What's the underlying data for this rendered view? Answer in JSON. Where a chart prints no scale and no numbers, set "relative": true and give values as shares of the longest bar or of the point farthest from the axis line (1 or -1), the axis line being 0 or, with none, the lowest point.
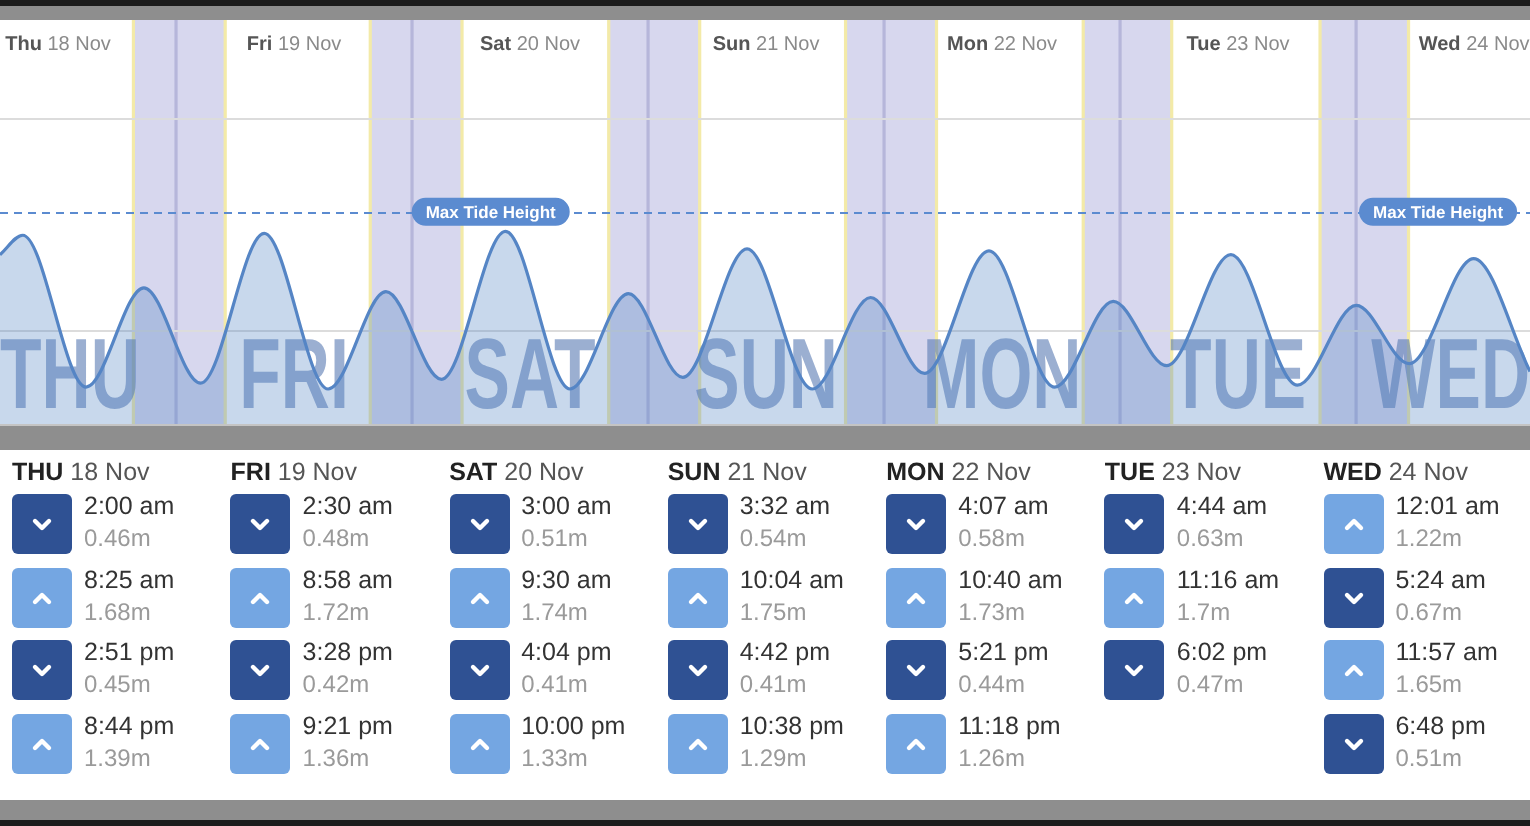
{
  "chart_data": [
    {
      "type": "area",
      "relative": true,
      "color": "#5585c5",
      "x": [
        "--11-18T06:06",
        "--11-18T08:25",
        "--11-18T14:51",
        "--11-18T20:44",
        "--11-19T02:30",
        "--11-19T08:58",
        "--11-19T15:28",
        "--11-19T21:21",
        "--11-20T03:00",
        "--11-20T09:30",
        "--11-20T16:04",
        "--11-20T22:00",
        "--11-21T03:32",
        "--11-21T10:04",
        "--11-21T16:42",
        "--11-21T22:38",
        "--11-22T04:07",
        "--11-22T10:40",
        "--11-22T17:21",
        "--11-22T23:18",
        "--11-23T04:44",
        "--11-23T11:16",
        "--11-23T18:02",
        "--11-24T00:01",
        "--11-24T05:24",
        "--11-24T11:57",
        "--11-24T17:41"
      ],
      "values": [
        0.88,
        0.98,
        0.2,
        0.71,
        0.22,
        0.99,
        0.19,
        0.69,
        0.24,
        1,
        0.19,
        0.68,
        0.25,
        0.91,
        0.19,
        0.66,
        0.27,
        0.9,
        0.2,
        0.64,
        0.31,
        0.88,
        0.21,
        0.62,
        0.32,
        0.86,
        0.28
      ],
      "xlim": [
        "--11-18T06:06",
        "--11-24T17:41"
      ],
      "xticks": [
        {
          "value": "--11-18T12:00",
          "label": "Thu 18 Nov"
        },
        {
          "value": "--11-19T12:00",
          "label": "Fri 19 Nov"
        },
        {
          "value": "--11-20T12:00",
          "label": "Sat 20 Nov"
        },
        {
          "value": "--11-21T12:00",
          "label": "Sun 21 Nov"
        },
        {
          "value": "--11-22T12:00",
          "label": "Mon 22 Nov"
        },
        {
          "value": "--11-23T12:00",
          "label": "Tue 23 Nov"
        },
        {
          "value": "--11-24T12:00",
          "label": "Wed 24 Nov"
        }
      ],
      "tick_labels": "x",
      "marker": "none",
      "ref_lines": [
        {
          "axis": "x",
          "value": "--11-19T00:00",
          "color": "#b6b6da"
        },
        {
          "axis": "x",
          "value": "--11-20T00:00",
          "color": "#b6b6da"
        },
        {
          "axis": "x",
          "value": "--11-21T00:00",
          "color": "#b6b6da"
        },
        {
          "axis": "x",
          "value": "--11-22T00:00",
          "color": "#b6b6da"
        },
        {
          "axis": "x",
          "value": "--11-23T00:00",
          "color": "#b6b6da"
        },
        {
          "axis": "x",
          "value": "--11-24T00:00",
          "color": "#b6b6da"
        },
        {
          "axis": "x",
          "value": "--11-18T19:40",
          "color": "#f3eaa8"
        },
        {
          "axis": "x",
          "value": "--11-19T05:00",
          "color": "#f3eaa8"
        },
        {
          "axis": "x",
          "value": "--11-19T19:45",
          "color": "#f3eaa8"
        },
        {
          "axis": "x",
          "value": "--11-20T05:05",
          "color": "#f3eaa8"
        },
        {
          "axis": "x",
          "value": "--11-20T20:00",
          "color": "#f3eaa8"
        },
        {
          "axis": "x",
          "value": "--11-21T05:15",
          "color": "#f3eaa8"
        },
        {
          "axis": "x",
          "value": "--11-21T20:05",
          "color": "#f3eaa8"
        },
        {
          "axis": "x",
          "value": "--11-22T05:20",
          "color": "#f3eaa8"
        },
        {
          "axis": "x",
          "value": "--11-22T20:15",
          "color": "#f3eaa8"
        },
        {
          "axis": "x",
          "value": "--11-23T05:15",
          "color": "#f3eaa8"
        },
        {
          "axis": "x",
          "value": "--11-23T20:20",
          "color": "#f3eaa8"
        },
        {
          "axis": "x",
          "value": "--11-24T05:20",
          "color": "#f3eaa8"
        },
        {
          "axis": "y",
          "value": 1.1,
          "color": "#5b8bd0",
          "line_style": "dashed"
        },
        {
          "axis": "y",
          "value": 0.49,
          "color": "#dcdcdc"
        },
        {
          "axis": "y",
          "value": 1.58,
          "color": "#dcdcdc"
        }
      ],
      "bands": [
        {
          "axis": "x",
          "from": "--11-18T19:40",
          "to": "--11-19T05:00",
          "color": "#d7d7ee"
        },
        {
          "axis": "x",
          "from": "--11-19T19:45",
          "to": "--11-20T05:05",
          "color": "#d7d7ee"
        },
        {
          "axis": "x",
          "from": "--11-20T20:00",
          "to": "--11-21T05:15",
          "color": "#d7d7ee"
        },
        {
          "axis": "x",
          "from": "--11-21T20:05",
          "to": "--11-22T05:20",
          "color": "#d7d7ee"
        },
        {
          "axis": "x",
          "from": "--11-22T20:15",
          "to": "--11-23T05:15",
          "color": "#d7d7ee"
        },
        {
          "axis": "x",
          "from": "--11-23T20:20",
          "to": "--11-24T05:20",
          "color": "#d7d7ee"
        }
      ],
      "annotations": [
        "THU",
        "FRI",
        "SAT",
        "SUN",
        "MON",
        "TUE",
        "WED",
        {
          "text": "Max Tide Height",
          "x": "--11-20T08:00",
          "y": 1.1
        },
        {
          "text": "Max Tide Height",
          "x": "--11-24T08:20",
          "y": 1.1
        }
      ]
    },
    {
      "type": "heatmap",
      "categories": [
        "THU 18 Nov",
        "FRI 19 Nov",
        "SAT 20 Nov",
        "SUN 21 Nov",
        "MON 22 Nov",
        "TUE 23 Nov",
        "WED 24 Nov"
      ],
      "y_categories": [
        null,
        null,
        null,
        null
      ],
      "cells": [
        [
          0.46,
          0.48,
          0.51,
          0.54,
          0.58,
          0.63,
          1.22
        ],
        [
          1.68,
          1.72,
          1.74,
          1.75,
          1.73,
          1.7,
          0.67
        ],
        [
          0.45,
          0.42,
          0.41,
          0.41,
          0.44,
          0.47,
          1.65
        ],
        [
          1.39,
          1.36,
          1.33,
          1.29,
          1.26,
          null,
          0.51
        ]
      ],
      "cell_labels": [
        [
          "0.46m",
          "0.48m",
          "0.51m",
          "0.54m",
          "0.58m",
          "0.63m",
          "1.22m"
        ],
        [
          "1.68m",
          "1.72m",
          "1.74m",
          "1.75m",
          "1.73m",
          "1.7m",
          "0.67m"
        ],
        [
          "0.45m",
          "0.42m",
          "0.41m",
          "0.41m",
          "0.44m",
          "0.47m",
          "1.65m"
        ],
        [
          "1.39m",
          "1.36m",
          "1.33m",
          "1.29m",
          "1.26m",
          null,
          "0.51m"
        ]
      ],
      "annotations": [
        "2:00 am",
        "8:25 am",
        "2:51 pm",
        "8:44 pm",
        "2:30 am",
        "8:58 am",
        "3:28 pm",
        "9:21 pm",
        "3:00 am",
        "9:30 am",
        "4:04 pm",
        "10:00 pm",
        "3:32 am",
        "10:04 am",
        "4:42 pm",
        "10:38 pm",
        "4:07 am",
        "10:40 am",
        "5:21 pm",
        "11:18 pm",
        "4:44 am",
        "11:16 am",
        "6:02 pm",
        "12:01 am",
        "5:24 am",
        "11:57 am",
        "6:48 pm"
      ]
    }
  ]
}
